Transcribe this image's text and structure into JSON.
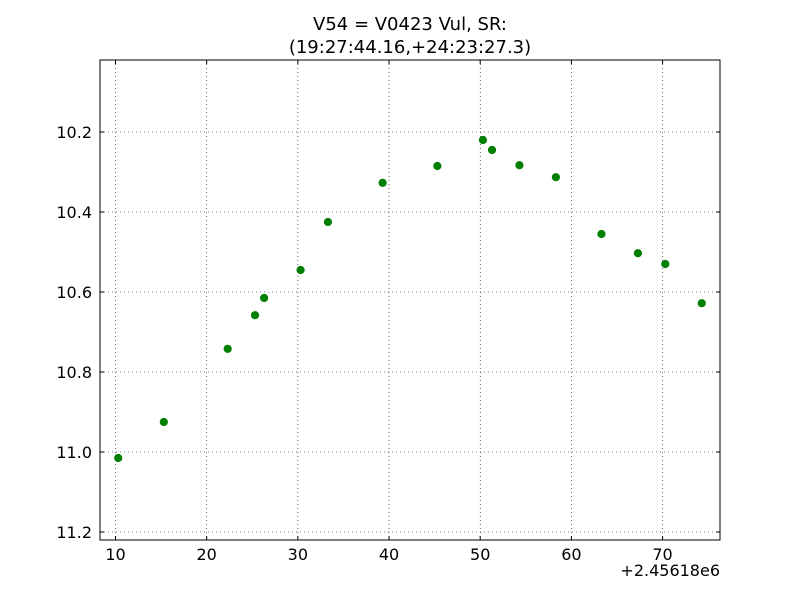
{
  "chart_data": {
    "type": "scatter",
    "title": "V54 = V0423 Vul, SR:",
    "subtitle": "(19:27:44.16,+24:23:27.3)",
    "xlabel": "",
    "ylabel": "",
    "x_offset_label": "+2.45618e6",
    "xlim": [
      8.3,
      76.3
    ],
    "ylim": [
      11.22,
      10.02
    ],
    "y_inverted": true,
    "grid": true,
    "x_ticks": [
      10,
      20,
      30,
      40,
      50,
      60,
      70
    ],
    "x_tick_labels": [
      "10",
      "20",
      "30",
      "40",
      "50",
      "60",
      "70"
    ],
    "y_ticks": [
      10.2,
      10.4,
      10.6,
      10.8,
      11.0,
      11.2
    ],
    "y_tick_labels": [
      "10.2",
      "10.4",
      "10.6",
      "10.8",
      "11.0",
      "11.2"
    ],
    "series": [
      {
        "color": "#007f00",
        "x": [
          10.3,
          15.3,
          22.3,
          25.3,
          26.3,
          30.3,
          33.3,
          39.3,
          45.3,
          50.3,
          51.3,
          54.3,
          58.3,
          63.3,
          67.3,
          70.3,
          74.3
        ],
        "y": [
          11.015,
          10.925,
          10.742,
          10.658,
          10.615,
          10.545,
          10.425,
          10.327,
          10.285,
          10.22,
          10.245,
          10.283,
          10.313,
          10.455,
          10.503,
          10.53,
          10.628
        ]
      }
    ]
  }
}
